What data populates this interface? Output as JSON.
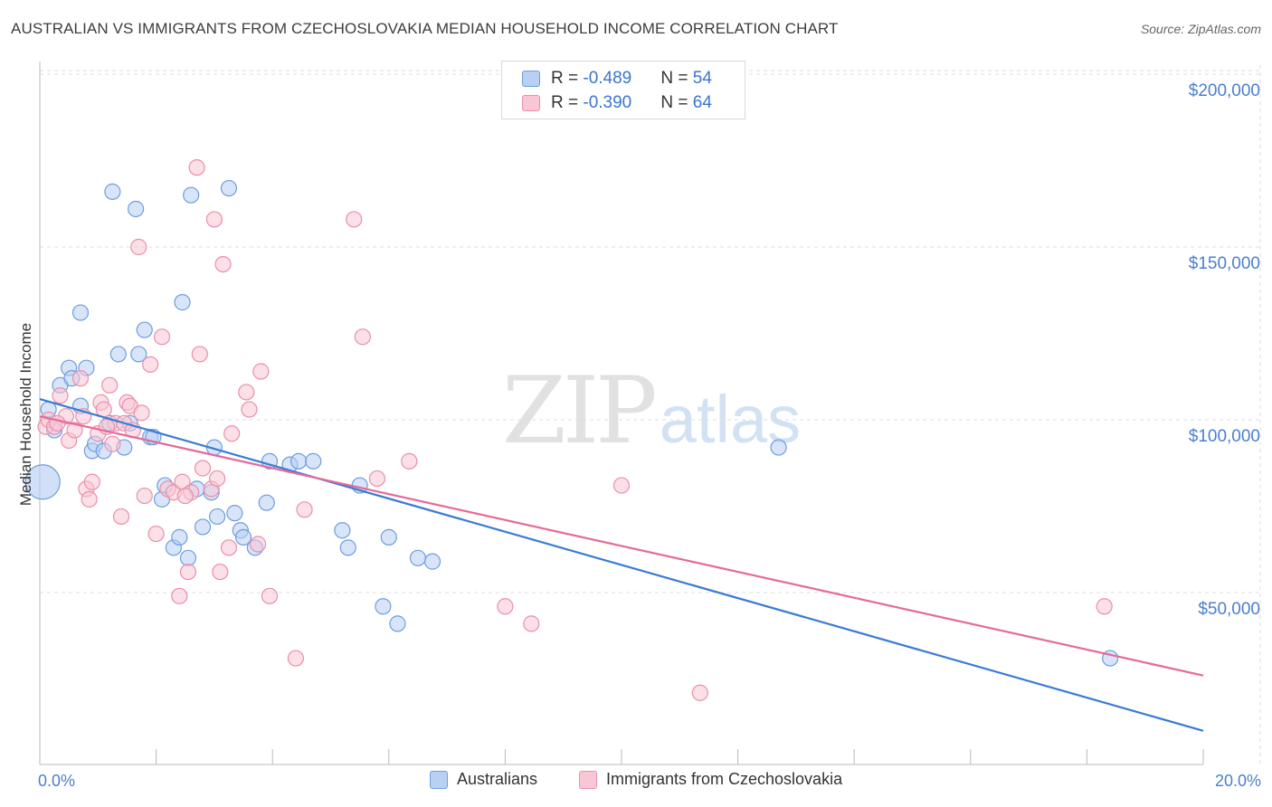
{
  "title": "AUSTRALIAN VS IMMIGRANTS FROM CZECHOSLOVAKIA MEDIAN HOUSEHOLD INCOME CORRELATION CHART",
  "source": "Source: ZipAtlas.com",
  "watermark": {
    "zip": "ZIP",
    "atlas": "atlas"
  },
  "legend": {
    "rows": [
      {
        "r_label": "R = ",
        "r_value": "-0.489",
        "n_label": "N = ",
        "n_value": "54"
      },
      {
        "r_label": "R = ",
        "r_value": "-0.390",
        "n_label": "N = ",
        "n_value": "64"
      }
    ]
  },
  "bottom_legend": {
    "series_a": "Australians",
    "series_b": "Immigrants from Czechoslovakia"
  },
  "colors": {
    "blue_fill": "#b8d0f2",
    "blue_stroke": "#6d9de0",
    "blue_line": "#3a7bd5",
    "pink_fill": "#f8c6d4",
    "pink_stroke": "#e98fab",
    "pink_line": "#e66a97",
    "grid": "#dddddd",
    "tick_text": "#4a7fd0"
  },
  "chart_data": {
    "type": "scatter",
    "title": "AUSTRALIAN VS IMMIGRANTS FROM CZECHOSLOVAKIA MEDIAN HOUSEHOLD INCOME CORRELATION CHART",
    "xlabel": "",
    "ylabel": "Median Household Income",
    "xlim": [
      0,
      20
    ],
    "ylim": [
      0,
      210000
    ],
    "x_tick_labels": [
      "0.0%",
      "20.0%"
    ],
    "y_ticks": [
      {
        "value": 50000,
        "label": "$50,000"
      },
      {
        "value": 100000,
        "label": "$100,000"
      },
      {
        "value": 150000,
        "label": "$150,000"
      },
      {
        "value": 200000,
        "label": "$200,000"
      }
    ],
    "grid": true,
    "series": [
      {
        "name": "Australians",
        "r": -0.489,
        "n": 54,
        "trend": {
          "x": [
            0,
            20
          ],
          "y": [
            106000,
            10000
          ]
        },
        "points": [
          [
            0.05,
            82000
          ],
          [
            0.15,
            103000
          ],
          [
            0.25,
            97000
          ],
          [
            0.35,
            110000
          ],
          [
            0.5,
            115000
          ],
          [
            0.55,
            112000
          ],
          [
            0.7,
            104000
          ],
          [
            0.7,
            131000
          ],
          [
            0.8,
            115000
          ],
          [
            0.9,
            91000
          ],
          [
            0.95,
            93000
          ],
          [
            1.1,
            91000
          ],
          [
            1.2,
            99000
          ],
          [
            1.25,
            166000
          ],
          [
            1.35,
            119000
          ],
          [
            1.45,
            92000
          ],
          [
            1.55,
            99000
          ],
          [
            1.65,
            161000
          ],
          [
            1.7,
            119000
          ],
          [
            1.8,
            126000
          ],
          [
            1.9,
            95000
          ],
          [
            1.95,
            95000
          ],
          [
            2.1,
            77000
          ],
          [
            2.15,
            81000
          ],
          [
            2.3,
            63000
          ],
          [
            2.4,
            66000
          ],
          [
            2.45,
            134000
          ],
          [
            2.55,
            60000
          ],
          [
            2.6,
            165000
          ],
          [
            2.7,
            80000
          ],
          [
            2.8,
            69000
          ],
          [
            2.95,
            79000
          ],
          [
            3.0,
            92000
          ],
          [
            3.05,
            72000
          ],
          [
            3.25,
            167000
          ],
          [
            3.35,
            73000
          ],
          [
            3.45,
            68000
          ],
          [
            3.5,
            66000
          ],
          [
            3.7,
            63000
          ],
          [
            3.9,
            76000
          ],
          [
            3.95,
            88000
          ],
          [
            4.3,
            87000
          ],
          [
            4.45,
            88000
          ],
          [
            4.7,
            88000
          ],
          [
            5.2,
            68000
          ],
          [
            5.3,
            63000
          ],
          [
            5.5,
            81000
          ],
          [
            5.9,
            46000
          ],
          [
            6.0,
            66000
          ],
          [
            6.15,
            41000
          ],
          [
            6.5,
            60000
          ],
          [
            6.75,
            59000
          ],
          [
            12.7,
            92000
          ],
          [
            18.4,
            31000
          ]
        ]
      },
      {
        "name": "Immigrants from Czechoslovakia",
        "r": -0.39,
        "n": 64,
        "trend": {
          "x": [
            0,
            20
          ],
          "y": [
            101000,
            26000
          ]
        },
        "points": [
          [
            0.1,
            98000
          ],
          [
            0.15,
            100000
          ],
          [
            0.25,
            98000
          ],
          [
            0.35,
            107000
          ],
          [
            0.45,
            101000
          ],
          [
            0.5,
            94000
          ],
          [
            0.6,
            97000
          ],
          [
            0.7,
            112000
          ],
          [
            0.75,
            101000
          ],
          [
            0.8,
            80000
          ],
          [
            0.85,
            77000
          ],
          [
            0.9,
            82000
          ],
          [
            1.0,
            96000
          ],
          [
            1.05,
            105000
          ],
          [
            1.1,
            103000
          ],
          [
            1.2,
            110000
          ],
          [
            1.25,
            93000
          ],
          [
            1.3,
            99000
          ],
          [
            1.4,
            72000
          ],
          [
            1.45,
            99000
          ],
          [
            1.5,
            105000
          ],
          [
            1.55,
            104000
          ],
          [
            1.6,
            97000
          ],
          [
            1.7,
            150000
          ],
          [
            1.75,
            102000
          ],
          [
            1.8,
            78000
          ],
          [
            1.9,
            116000
          ],
          [
            2.0,
            67000
          ],
          [
            2.1,
            124000
          ],
          [
            2.2,
            80000
          ],
          [
            2.3,
            79000
          ],
          [
            2.4,
            49000
          ],
          [
            2.45,
            82000
          ],
          [
            2.55,
            56000
          ],
          [
            2.6,
            79000
          ],
          [
            2.7,
            173000
          ],
          [
            2.75,
            119000
          ],
          [
            2.8,
            86000
          ],
          [
            2.95,
            80000
          ],
          [
            3.0,
            158000
          ],
          [
            3.05,
            83000
          ],
          [
            3.1,
            56000
          ],
          [
            3.15,
            145000
          ],
          [
            3.25,
            63000
          ],
          [
            3.3,
            96000
          ],
          [
            3.55,
            108000
          ],
          [
            3.6,
            103000
          ],
          [
            3.75,
            64000
          ],
          [
            3.8,
            114000
          ],
          [
            3.95,
            49000
          ],
          [
            4.4,
            31000
          ],
          [
            4.55,
            74000
          ],
          [
            5.4,
            158000
          ],
          [
            5.55,
            124000
          ],
          [
            5.8,
            83000
          ],
          [
            6.35,
            88000
          ],
          [
            8.0,
            46000
          ],
          [
            8.45,
            41000
          ],
          [
            10.0,
            81000
          ],
          [
            11.35,
            21000
          ],
          [
            18.3,
            46000
          ],
          [
            0.3,
            99000
          ],
          [
            1.15,
            98000
          ],
          [
            2.5,
            78000
          ]
        ]
      }
    ]
  }
}
